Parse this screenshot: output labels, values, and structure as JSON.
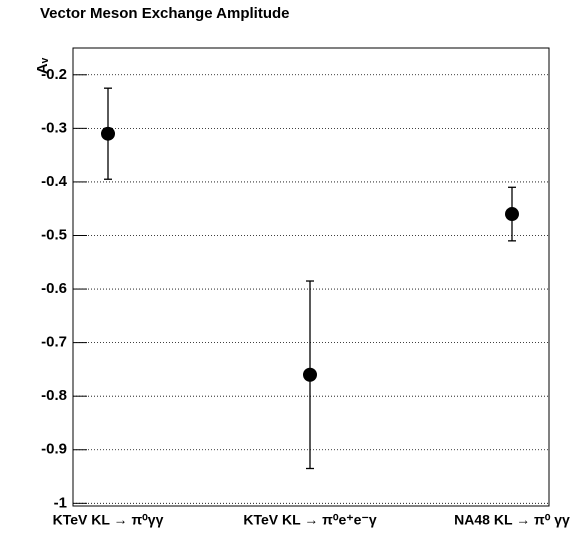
{
  "chart_data": {
    "type": "errorbar",
    "title": "Vector Meson Exchange Amplitude",
    "y_label": "Aᵥ",
    "categories": [
      "KTeV KL → π⁰γγ",
      "KTeV KL → π⁰e⁺e⁻γ",
      "NA48 KL → π⁰ γγ"
    ],
    "values": [
      -0.31,
      -0.76,
      -0.46
    ],
    "errors": [
      0.085,
      0.175,
      0.05
    ],
    "color": "#000000",
    "ylim": [
      -1.005,
      -0.15
    ],
    "yticks": [
      -0.2,
      -0.3,
      -0.4,
      -0.5,
      -0.6,
      -0.7,
      -0.8,
      -0.9,
      -1
    ],
    "grid": true
  }
}
